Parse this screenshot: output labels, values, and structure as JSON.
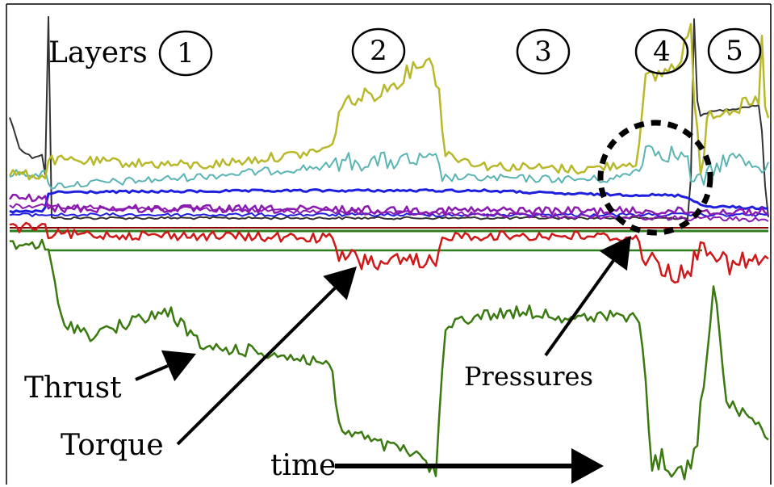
{
  "chart_data": {
    "type": "line",
    "title": "",
    "xlabel": "time",
    "ylabel": "",
    "grid": false,
    "legend": "none",
    "layers_label": "Layers",
    "layers": [
      "1",
      "2",
      "3",
      "4",
      "5"
    ],
    "annotations": [
      {
        "text": "Thrust",
        "points_to": "Thrust"
      },
      {
        "text": "Torque",
        "points_to": "Torque"
      },
      {
        "text": "Pressures",
        "points_to": "Pressures"
      }
    ],
    "series": [
      {
        "key": "yellow",
        "color": "#b8b82a"
      },
      {
        "key": "cyan",
        "color": "#5ab4b4"
      },
      {
        "key": "blue",
        "color": "#1f1fe0"
      },
      {
        "key": "purple",
        "color": "#8a1ab0"
      },
      {
        "key": "red",
        "color": "#d01818"
      },
      {
        "key": "Thrust",
        "color": "#3a7a10"
      },
      {
        "key": "gray",
        "color": "#333333"
      },
      {
        "key": "darkred",
        "color": "#8b0000"
      },
      {
        "key": "green-ref",
        "color": "#2e7d1e"
      }
    ]
  }
}
